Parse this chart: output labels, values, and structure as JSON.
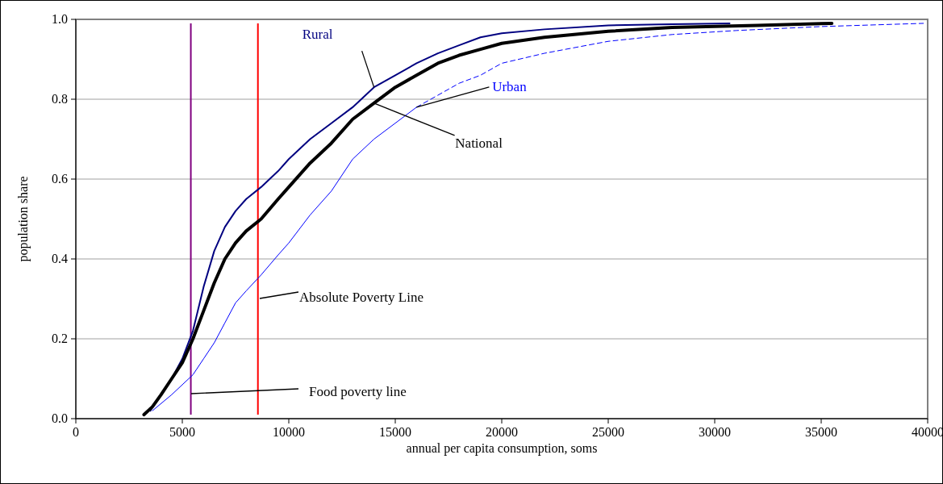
{
  "chart_data": {
    "type": "line",
    "xlabel": "annual per capita consumption, soms",
    "ylabel": "population share",
    "xlim": [
      0,
      40000
    ],
    "xticks": [
      0,
      5000,
      10000,
      15000,
      20000,
      25000,
      30000,
      35000,
      40000
    ],
    "ylim": [
      0,
      1
    ],
    "yticks": [
      {
        "value": 0,
        "label": "0.0"
      },
      {
        "value": 0.2,
        "label": "0.2"
      },
      {
        "value": 0.4,
        "label": "0.4"
      },
      {
        "value": 0.6,
        "label": "0.6"
      },
      {
        "value": 0.8,
        "label": "0.8"
      },
      {
        "value": 1,
        "label": "1.0"
      }
    ],
    "grid": "y",
    "marker": "none",
    "series": [
      {
        "name": "Rural",
        "color": "#000080",
        "line_style": "solid",
        "x": [
          3500,
          4000,
          4500,
          5000,
          5500,
          6000,
          6500,
          7000,
          7500,
          8000,
          8700,
          9500,
          10000,
          11000,
          12000,
          13000,
          14000,
          15000,
          16000,
          17000,
          18000,
          19000,
          20000,
          22000,
          25000,
          28000,
          30700
        ],
        "values": [
          0.02,
          0.06,
          0.1,
          0.15,
          0.22,
          0.33,
          0.42,
          0.48,
          0.52,
          0.55,
          0.58,
          0.62,
          0.65,
          0.7,
          0.74,
          0.78,
          0.83,
          0.86,
          0.89,
          0.915,
          0.935,
          0.955,
          0.965,
          0.975,
          0.985,
          0.988,
          0.99
        ]
      },
      {
        "name": "National",
        "color": "#000000",
        "line_style": "solid",
        "x": [
          3200,
          3600,
          4000,
          4500,
          5000,
          5500,
          6000,
          6500,
          7000,
          7500,
          8000,
          8700,
          9500,
          10000,
          11000,
          12000,
          13000,
          14000,
          15000,
          16000,
          17000,
          18000,
          19000,
          20000,
          22000,
          25000,
          28000,
          32000,
          35500
        ],
        "values": [
          0.01,
          0.03,
          0.06,
          0.1,
          0.14,
          0.2,
          0.27,
          0.34,
          0.4,
          0.44,
          0.47,
          0.5,
          0.55,
          0.58,
          0.64,
          0.69,
          0.75,
          0.79,
          0.83,
          0.86,
          0.89,
          0.91,
          0.925,
          0.94,
          0.955,
          0.97,
          0.98,
          0.985,
          0.99
        ]
      },
      {
        "name": "Urban",
        "color": "#0000ff",
        "line_style": "solid",
        "x": [
          3600,
          4500,
          5500,
          6000,
          6500,
          7000,
          7500,
          8000,
          8700,
          9500,
          10000,
          11000,
          12000,
          13000,
          14000,
          15000,
          16000
        ],
        "values": [
          0.02,
          0.06,
          0.11,
          0.15,
          0.19,
          0.24,
          0.29,
          0.32,
          0.36,
          0.41,
          0.44,
          0.51,
          0.57,
          0.65,
          0.7,
          0.74,
          0.78
        ]
      },
      {
        "color": "#0000ff",
        "line_style": "dashed",
        "x": [
          16000,
          17000,
          18000,
          19000,
          20000,
          22000,
          25000,
          28000,
          31000,
          35000,
          39800
        ],
        "values": [
          0.78,
          0.81,
          0.84,
          0.86,
          0.89,
          0.915,
          0.945,
          0.962,
          0.972,
          0.982,
          0.99
        ]
      }
    ],
    "ref_lines": [
      {
        "axis": "x",
        "value": 5400,
        "label": "Food poverty line",
        "color": "#800080"
      },
      {
        "axis": "x",
        "value": 8550,
        "label": "Absolute Poverty Line",
        "color": "#ff0000"
      }
    ]
  }
}
